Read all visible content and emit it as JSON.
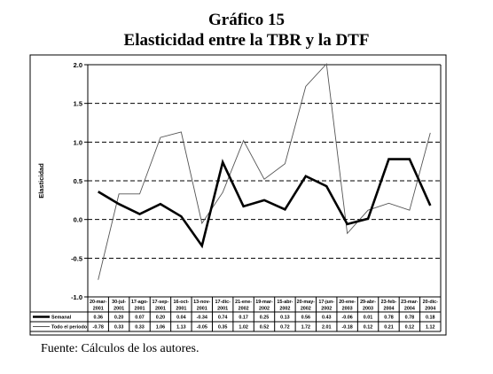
{
  "title": "Gráfico 15",
  "subtitle": "Elasticidad entre la TBR y la DTF",
  "source": "Fuente: Cálculos de los autores.",
  "chart_data": {
    "type": "line",
    "ylabel": "Elasticidad",
    "ylim": [
      -1.0,
      2.0
    ],
    "yticks": [
      "2.0",
      "1.5",
      "1.0",
      "0.5",
      "0.0",
      "-0.5",
      "-1.0"
    ],
    "grid": "dashed horizontal",
    "categories": [
      [
        "20-mar-",
        "2001"
      ],
      [
        "30-jul-",
        "2001"
      ],
      [
        "17-ago-",
        "2001"
      ],
      [
        "17-sep-",
        "2001"
      ],
      [
        "16-oct-",
        "2001"
      ],
      [
        "13-nov-",
        "2001"
      ],
      [
        "17-dic-",
        "2001"
      ],
      [
        "21-ene-",
        "2002"
      ],
      [
        "19-mar-",
        "2002"
      ],
      [
        "15-abr-",
        "2002"
      ],
      [
        "20-may-",
        "2002"
      ],
      [
        "17-jun-",
        "2002"
      ],
      [
        "20-ene-",
        "2003"
      ],
      [
        "29-abr-",
        "2003"
      ],
      [
        "23-feb-",
        "2004"
      ],
      [
        "23-mar-",
        "2004"
      ],
      [
        "20-dic-",
        "2004"
      ]
    ],
    "series": [
      {
        "name": "Semanal",
        "color": "#000000",
        "width": 2.6,
        "values": [
          0.36,
          0.2,
          0.07,
          0.2,
          0.04,
          -0.34,
          0.74,
          0.17,
          0.25,
          0.13,
          0.56,
          0.43,
          -0.06,
          0.01,
          0.78,
          0.78,
          0.18
        ],
        "labels": [
          "0.36",
          "0.20",
          "0.07",
          "0.20",
          "0.04",
          "-0.34",
          "0.74",
          "0.17",
          "0.25",
          "0.13",
          "0.56",
          "0.43",
          "-0.06",
          "0.01",
          "0.78",
          "0.78",
          "0.18"
        ]
      },
      {
        "name": "Todo el periodo",
        "color": "#555555",
        "width": 0.9,
        "values": [
          -0.78,
          0.33,
          0.33,
          1.06,
          1.13,
          -0.05,
          0.35,
          1.02,
          0.52,
          0.72,
          1.72,
          2.01,
          -0.18,
          0.12,
          0.21,
          0.12,
          1.12
        ],
        "labels": [
          "-0.78",
          "0.33",
          "0.33",
          "1.06",
          "1.13",
          "-0.05",
          "0.35",
          "1.02",
          "0.52",
          "0.72",
          "1.72",
          "2.01",
          "-0.18",
          "0.12",
          "0.21",
          "0.12",
          "1.12"
        ]
      }
    ]
  }
}
